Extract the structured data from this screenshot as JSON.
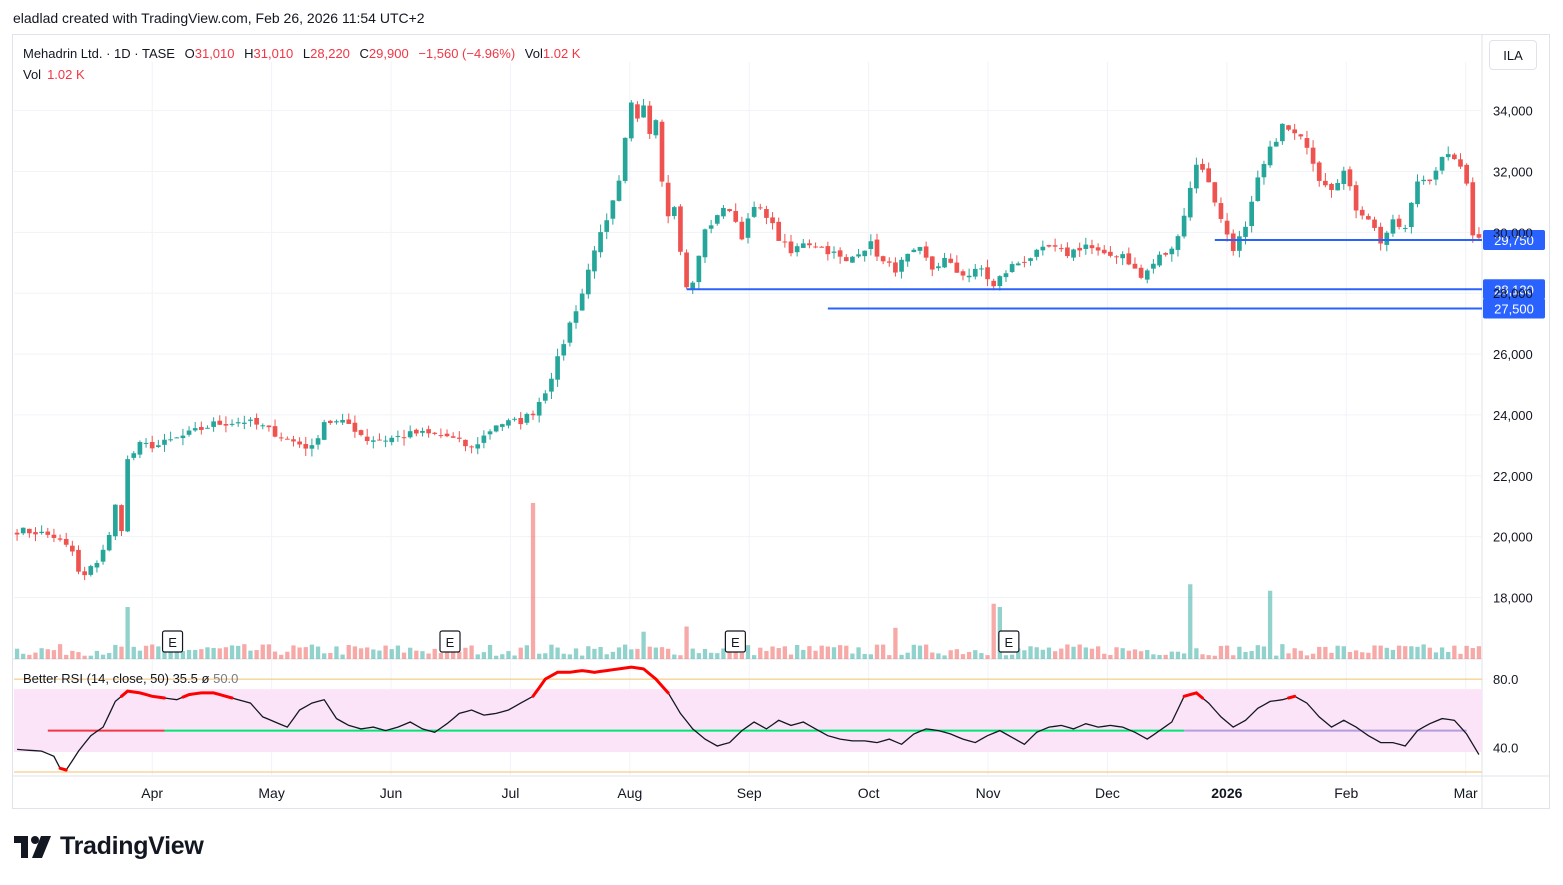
{
  "header": {
    "caption": "eladlad created with TradingView.com, Feb 26, 2026 11:54 UTC+2"
  },
  "legend": {
    "symbol": "Mehadrin Ltd. · 1D · TASE",
    "open_label": "O",
    "open": "31,010",
    "high_label": "H",
    "high": "31,010",
    "low_label": "L",
    "low": "28,220",
    "close_label": "C",
    "close": "29,900",
    "change": "−1,560 (−4.96%)",
    "vol_label": "Vol",
    "vol": "1.02 K",
    "vol2_label": "Vol",
    "vol2": "1.02 K"
  },
  "rsi_legend": {
    "name": "Better RSI (14, close, 50)",
    "value": "35.5",
    "sep": "ø",
    "mid": "50.0"
  },
  "currency": "ILA",
  "logo_text": "TradingView",
  "colors": {
    "up": "#26a69a",
    "down": "#ef5350",
    "level": "#2962ff",
    "rsi_line": "#131722",
    "rsi_hot": "#ff0000",
    "rsi_mid": "#00e676",
    "rsi_band": "#fce4f8"
  },
  "chart_data": [
    {
      "type": "candlestick",
      "title": "Mehadrin Ltd. · 1D · TASE",
      "ylim": [
        16800,
        35600
      ],
      "y_ticks": [
        18000,
        20000,
        22000,
        24000,
        26000,
        28000,
        30000,
        32000,
        34000
      ],
      "y_tick_labels": [
        "18,000",
        "20,000",
        "22,000",
        "24,000",
        "26,000",
        "28,000",
        "30,000",
        "32,000",
        "34,000"
      ],
      "x_ticks": [
        "Apr",
        "May",
        "Jun",
        "Jul",
        "Aug",
        "Sep",
        "Oct",
        "Nov",
        "Dec",
        "2026",
        "Feb",
        "Mar"
      ],
      "horizontal_levels": [
        {
          "value": 29750,
          "label": "29,750"
        },
        {
          "value": 28130,
          "label": "28,130"
        },
        {
          "value": 27500,
          "label": "27,500"
        }
      ],
      "earnings_markers": [
        "E",
        "E",
        "E",
        "E"
      ],
      "price_path": [
        [
          0,
          20200
        ],
        [
          3,
          20150
        ],
        [
          6,
          20000
        ],
        [
          9,
          19500
        ],
        [
          10,
          18800
        ],
        [
          11,
          18700
        ],
        [
          13,
          19200
        ],
        [
          15,
          20000
        ],
        [
          16,
          21000
        ],
        [
          17,
          20300
        ],
        [
          18,
          22500
        ],
        [
          20,
          23000
        ],
        [
          23,
          23000
        ],
        [
          27,
          23300
        ],
        [
          32,
          23700
        ],
        [
          37,
          23800
        ],
        [
          40,
          23600
        ],
        [
          44,
          23200
        ],
        [
          48,
          22900
        ],
        [
          50,
          23800
        ],
        [
          54,
          23700
        ],
        [
          57,
          23200
        ],
        [
          60,
          23200
        ],
        [
          65,
          23400
        ],
        [
          70,
          23300
        ],
        [
          74,
          22900
        ],
        [
          78,
          23700
        ],
        [
          82,
          23800
        ],
        [
          84,
          24100
        ],
        [
          86,
          24800
        ],
        [
          88,
          25800
        ],
        [
          90,
          27000
        ],
        [
          92,
          28000
        ],
        [
          94,
          29500
        ],
        [
          96,
          30300
        ],
        [
          98,
          31600
        ],
        [
          99,
          33000
        ],
        [
          100,
          34200
        ],
        [
          101,
          33800
        ],
        [
          102,
          34300
        ],
        [
          103,
          33300
        ],
        [
          104,
          33800
        ],
        [
          105,
          31800
        ],
        [
          106,
          30500
        ],
        [
          107,
          30900
        ],
        [
          108,
          29300
        ],
        [
          109,
          28200
        ],
        [
          110,
          28300
        ],
        [
          111,
          29300
        ],
        [
          112,
          30000
        ],
        [
          114,
          30600
        ],
        [
          116,
          30800
        ],
        [
          118,
          29900
        ],
        [
          120,
          30800
        ],
        [
          122,
          30600
        ],
        [
          124,
          29800
        ],
        [
          126,
          29300
        ],
        [
          128,
          29700
        ],
        [
          130,
          29600
        ],
        [
          133,
          29300
        ],
        [
          135,
          29000
        ],
        [
          137,
          29400
        ],
        [
          139,
          29600
        ],
        [
          141,
          29000
        ],
        [
          143,
          28800
        ],
        [
          145,
          29200
        ],
        [
          147,
          29400
        ],
        [
          149,
          28800
        ],
        [
          151,
          29100
        ],
        [
          153,
          28700
        ],
        [
          155,
          28600
        ],
        [
          157,
          28800
        ],
        [
          159,
          28200
        ],
        [
          160,
          28500
        ],
        [
          162,
          28900
        ],
        [
          165,
          29200
        ],
        [
          168,
          29500
        ],
        [
          171,
          29300
        ],
        [
          174,
          29600
        ],
        [
          177,
          29200
        ],
        [
          180,
          29300
        ],
        [
          183,
          28500
        ],
        [
          186,
          29200
        ],
        [
          188,
          29400
        ],
        [
          190,
          30600
        ],
        [
          192,
          32300
        ],
        [
          194,
          31700
        ],
        [
          196,
          30400
        ],
        [
          198,
          29500
        ],
        [
          200,
          30100
        ],
        [
          202,
          31700
        ],
        [
          204,
          32700
        ],
        [
          206,
          33500
        ],
        [
          208,
          33200
        ],
        [
          210,
          32900
        ],
        [
          212,
          31800
        ],
        [
          214,
          31500
        ],
        [
          216,
          32000
        ],
        [
          218,
          30800
        ],
        [
          220,
          30500
        ],
        [
          222,
          29700
        ],
        [
          224,
          30300
        ],
        [
          226,
          30100
        ],
        [
          228,
          31700
        ],
        [
          230,
          31800
        ],
        [
          232,
          32400
        ],
        [
          234,
          32500
        ],
        [
          236,
          31600
        ],
        [
          237,
          30000
        ],
        [
          238,
          29900
        ]
      ],
      "volume_spikes": [
        {
          "i": 18,
          "v": 8.0
        },
        {
          "i": 84,
          "v": 24.0
        },
        {
          "i": 102,
          "v": 4.2
        },
        {
          "i": 109,
          "v": 5.0
        },
        {
          "i": 143,
          "v": 4.8
        },
        {
          "i": 159,
          "v": 8.5
        },
        {
          "i": 160,
          "v": 8.0
        },
        {
          "i": 191,
          "v": 11.5
        },
        {
          "i": 204,
          "v": 10.5
        }
      ]
    },
    {
      "type": "line",
      "title": "Better RSI (14, close, 50)",
      "ylim": [
        20,
        90
      ],
      "y_ticks": [
        40,
        80
      ],
      "y_tick_labels": [
        "40.0",
        "80.0"
      ],
      "bands": [
        34,
        80
      ],
      "midline": 50,
      "rsi_path": [
        [
          0,
          39
        ],
        [
          4,
          38
        ],
        [
          6,
          35
        ],
        [
          7,
          28
        ],
        [
          8,
          27
        ],
        [
          10,
          38
        ],
        [
          12,
          47
        ],
        [
          14,
          52
        ],
        [
          16,
          67
        ],
        [
          18,
          73
        ],
        [
          20,
          72
        ],
        [
          22,
          70
        ],
        [
          24,
          69
        ],
        [
          26,
          68
        ],
        [
          28,
          71
        ],
        [
          30,
          72
        ],
        [
          32,
          72
        ],
        [
          34,
          70
        ],
        [
          36,
          68
        ],
        [
          38,
          66
        ],
        [
          40,
          58
        ],
        [
          42,
          55
        ],
        [
          44,
          52
        ],
        [
          46,
          62
        ],
        [
          48,
          66
        ],
        [
          50,
          68
        ],
        [
          52,
          57
        ],
        [
          54,
          53
        ],
        [
          56,
          51
        ],
        [
          58,
          52
        ],
        [
          60,
          50
        ],
        [
          62,
          52
        ],
        [
          64,
          55
        ],
        [
          66,
          51
        ],
        [
          68,
          49
        ],
        [
          70,
          54
        ],
        [
          72,
          60
        ],
        [
          74,
          62
        ],
        [
          76,
          59
        ],
        [
          78,
          60
        ],
        [
          80,
          62
        ],
        [
          82,
          66
        ],
        [
          84,
          70
        ],
        [
          86,
          80
        ],
        [
          88,
          84
        ],
        [
          90,
          84
        ],
        [
          92,
          85
        ],
        [
          94,
          84
        ],
        [
          96,
          85
        ],
        [
          98,
          86
        ],
        [
          100,
          87
        ],
        [
          102,
          86
        ],
        [
          104,
          80
        ],
        [
          106,
          72
        ],
        [
          108,
          60
        ],
        [
          110,
          51
        ],
        [
          112,
          45
        ],
        [
          114,
          41
        ],
        [
          116,
          43
        ],
        [
          118,
          50
        ],
        [
          120,
          55
        ],
        [
          122,
          51
        ],
        [
          124,
          56
        ],
        [
          126,
          53
        ],
        [
          128,
          55
        ],
        [
          130,
          51
        ],
        [
          132,
          47
        ],
        [
          134,
          45
        ],
        [
          136,
          44
        ],
        [
          138,
          44
        ],
        [
          140,
          43
        ],
        [
          142,
          45
        ],
        [
          144,
          42
        ],
        [
          146,
          48
        ],
        [
          148,
          51
        ],
        [
          150,
          50
        ],
        [
          152,
          48
        ],
        [
          154,
          45
        ],
        [
          156,
          43
        ],
        [
          158,
          47
        ],
        [
          160,
          50
        ],
        [
          162,
          46
        ],
        [
          164,
          42
        ],
        [
          166,
          49
        ],
        [
          168,
          52
        ],
        [
          170,
          53
        ],
        [
          172,
          51
        ],
        [
          174,
          54
        ],
        [
          176,
          52
        ],
        [
          178,
          53
        ],
        [
          180,
          52
        ],
        [
          182,
          49
        ],
        [
          184,
          45
        ],
        [
          186,
          50
        ],
        [
          188,
          55
        ],
        [
          190,
          70
        ],
        [
          192,
          72
        ],
        [
          194,
          66
        ],
        [
          196,
          58
        ],
        [
          198,
          52
        ],
        [
          200,
          56
        ],
        [
          202,
          63
        ],
        [
          204,
          67
        ],
        [
          206,
          68
        ],
        [
          208,
          70
        ],
        [
          210,
          66
        ],
        [
          212,
          58
        ],
        [
          214,
          52
        ],
        [
          216,
          56
        ],
        [
          218,
          52
        ],
        [
          220,
          47
        ],
        [
          222,
          43
        ],
        [
          224,
          43
        ],
        [
          226,
          41
        ],
        [
          228,
          50
        ],
        [
          230,
          54
        ],
        [
          232,
          57
        ],
        [
          234,
          56
        ],
        [
          236,
          48
        ],
        [
          238,
          36
        ]
      ]
    }
  ]
}
